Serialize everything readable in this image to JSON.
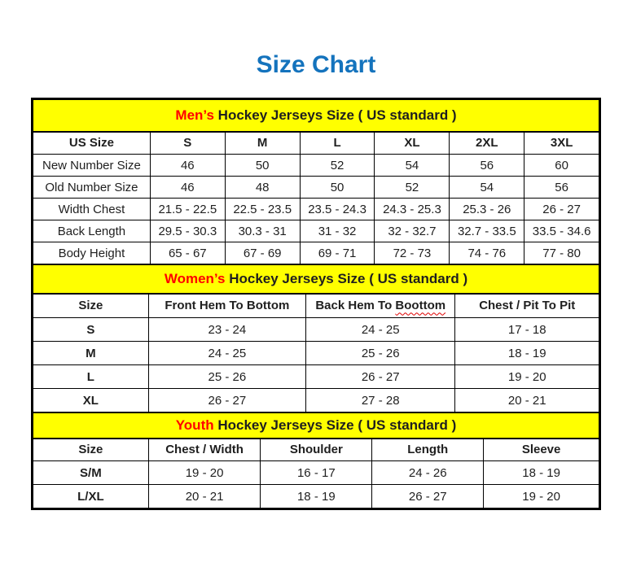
{
  "page": {
    "title": "Size Chart"
  },
  "colors": {
    "title_blue": "#1473bd",
    "accent_red": "#ff0000",
    "band_yellow": "#ffff00"
  },
  "sections": [
    {
      "id": "mens",
      "heading_highlight": "Men’s",
      "heading_rest": " Hockey Jerseys Size ( US standard )",
      "columns": [
        {
          "label": "US Size"
        },
        {
          "label": "S"
        },
        {
          "label": "M"
        },
        {
          "label": "L"
        },
        {
          "label": "XL"
        },
        {
          "label": "2XL"
        },
        {
          "label": "3XL"
        }
      ],
      "rows": [
        {
          "label": "New Number Size",
          "values": [
            "46",
            "50",
            "52",
            "54",
            "56",
            "60"
          ]
        },
        {
          "label": "Old Number Size",
          "values": [
            "46",
            "48",
            "50",
            "52",
            "54",
            "56"
          ]
        },
        {
          "label": "Width Chest",
          "values": [
            "21.5 - 22.5",
            "22.5 - 23.5",
            "23.5 - 24.3",
            "24.3 - 25.3",
            "25.3 - 26",
            "26 - 27"
          ]
        },
        {
          "label": "Back Length",
          "values": [
            "29.5 - 30.3",
            "30.3 - 31",
            "31 - 32",
            "32 - 32.7",
            "32.7 - 33.5",
            "33.5 - 34.6"
          ]
        },
        {
          "label": "Body Height",
          "values": [
            "65 - 67",
            "67 - 69",
            "69 - 71",
            "72 - 73",
            "74 - 76",
            "77 - 80"
          ]
        }
      ]
    },
    {
      "id": "womens",
      "heading_highlight": "Women’s",
      "heading_rest": " Hockey Jerseys Size ( US standard )",
      "columns": [
        {
          "label": "Size"
        },
        {
          "label": "Front Hem To Bottom"
        },
        {
          "label": "Back Hem To Boottom",
          "squiggle_word": "Boottom"
        },
        {
          "label": "Chest / Pit To Pit"
        }
      ],
      "rows": [
        {
          "label": "S",
          "values": [
            "23 - 24",
            "24 - 25",
            "17 - 18"
          ]
        },
        {
          "label": "M",
          "values": [
            "24 - 25",
            "25 - 26",
            "18 - 19"
          ]
        },
        {
          "label": "L",
          "values": [
            "25 - 26",
            "26 - 27",
            "19 - 20"
          ]
        },
        {
          "label": "XL",
          "values": [
            "26 - 27",
            "27 - 28",
            "20 - 21"
          ]
        }
      ]
    },
    {
      "id": "youth",
      "heading_highlight": "Youth",
      "heading_rest": " Hockey Jerseys Size ( US standard )",
      "columns": [
        {
          "label": "Size"
        },
        {
          "label": "Chest / Width"
        },
        {
          "label": "Shoulder"
        },
        {
          "label": "Length"
        },
        {
          "label": "Sleeve"
        }
      ],
      "rows": [
        {
          "label": "S/M",
          "values": [
            "19 - 20",
            "16 - 17",
            "24 - 26",
            "18 - 19"
          ]
        },
        {
          "label": "L/XL",
          "values": [
            "20 - 21",
            "18 - 19",
            "26 - 27",
            "19 - 20"
          ]
        }
      ]
    }
  ]
}
